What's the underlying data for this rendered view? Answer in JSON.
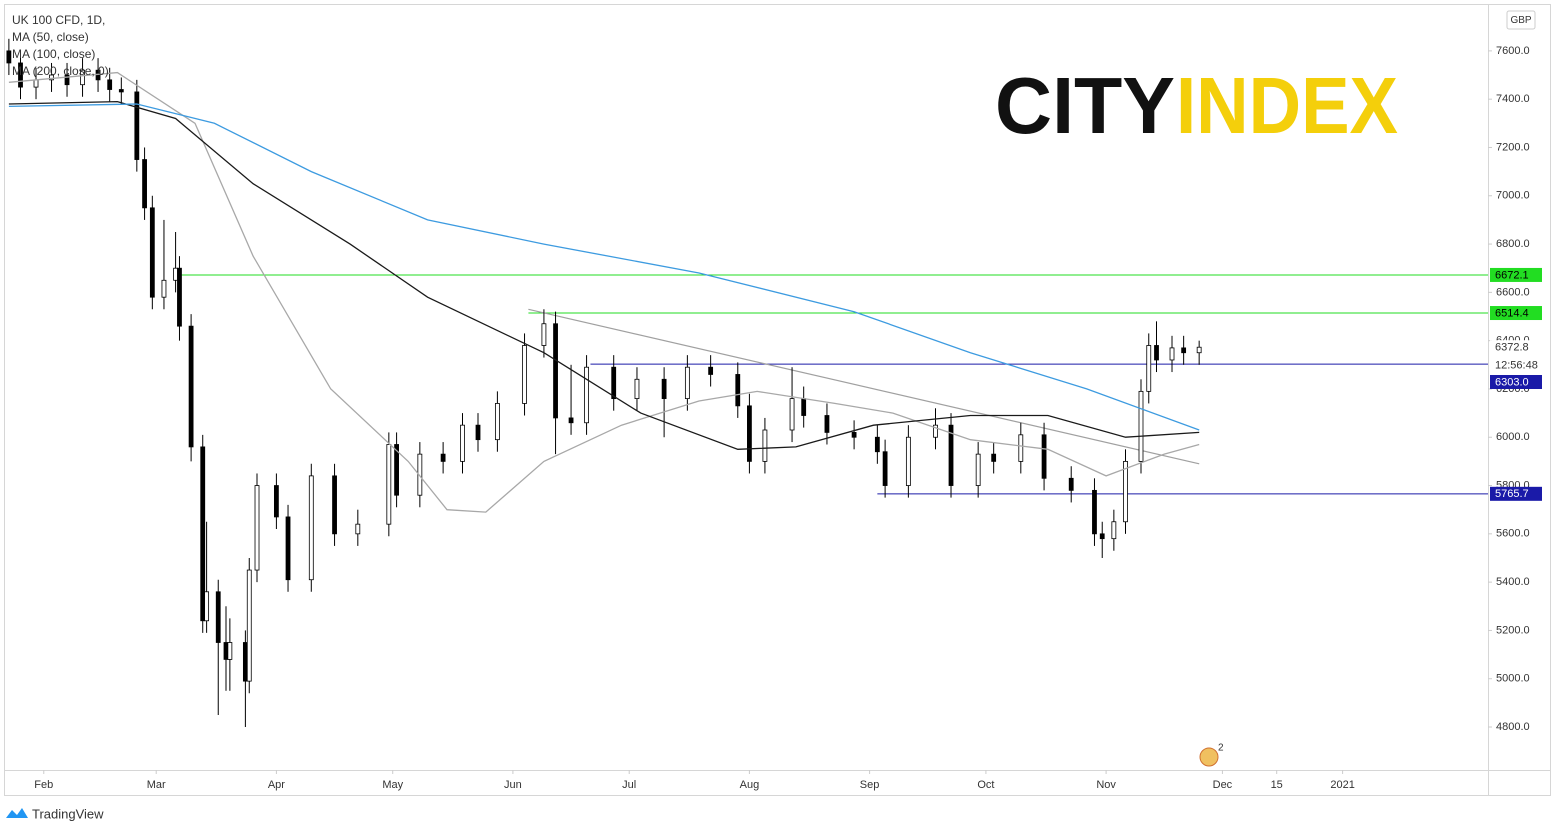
{
  "chart_data": {
    "type": "candlestick",
    "symbol": "UK 100 CFD, 1D,",
    "currency": "GBP",
    "brand": "TradingView",
    "logo": {
      "left": "CITY",
      "right": "INDEX"
    },
    "badge": "2",
    "countdown": "12:56:48",
    "xlim": [
      21,
      403.5
    ],
    "ylim": [
      4622,
      7790
    ],
    "grid": false,
    "xticks": [
      {
        "value": 31,
        "label": "Feb"
      },
      {
        "value": 60,
        "label": "Mar"
      },
      {
        "value": 91,
        "label": "Apr"
      },
      {
        "value": 121,
        "label": "May"
      },
      {
        "value": 152,
        "label": "Jun"
      },
      {
        "value": 182,
        "label": "Jul"
      },
      {
        "value": 213,
        "label": "Aug"
      },
      {
        "value": 244,
        "label": "Sep"
      },
      {
        "value": 274,
        "label": "Oct"
      },
      {
        "value": 305,
        "label": "Nov"
      },
      {
        "value": 335,
        "label": "Dec"
      },
      {
        "value": 349,
        "label": "15"
      },
      {
        "value": 366,
        "label": "2021"
      }
    ],
    "yticks": [
      {
        "value": 4800,
        "label": "4800.0"
      },
      {
        "value": 5000,
        "label": "5000.0"
      },
      {
        "value": 5200,
        "label": "5200.0"
      },
      {
        "value": 5400,
        "label": "5400.0"
      },
      {
        "value": 5600,
        "label": "5600.0"
      },
      {
        "value": 5800,
        "label": "5800.0"
      },
      {
        "value": 6000,
        "label": "6000.0"
      },
      {
        "value": 6200,
        "label": "6200.0"
      },
      {
        "value": 6400,
        "label": "6400.0"
      },
      {
        "value": 6600,
        "label": "6600.0"
      },
      {
        "value": 6800,
        "label": "6800.0"
      },
      {
        "value": 7000,
        "label": "7000.0"
      },
      {
        "value": 7200,
        "label": "7200.0"
      },
      {
        "value": 7400,
        "label": "7400.0"
      },
      {
        "value": 7600,
        "label": "7600.0"
      }
    ],
    "up_color": "#ffffff",
    "down_color": "#000000",
    "candles": {
      "x": [
        22,
        25,
        29,
        33,
        37,
        41,
        45,
        48,
        51,
        55,
        57,
        59,
        62,
        65,
        66,
        69,
        72,
        73,
        76,
        78,
        79,
        83,
        84,
        86,
        91,
        94,
        100,
        106,
        112,
        120,
        122,
        128,
        134,
        139,
        143,
        148,
        155,
        160,
        163,
        167,
        171,
        178,
        184,
        191,
        197,
        203,
        210,
        213,
        217,
        224,
        227,
        233,
        240,
        246,
        248,
        254,
        261,
        265,
        272,
        276,
        283,
        289,
        296,
        302,
        304,
        307,
        310,
        314,
        316,
        318,
        322,
        325,
        329
      ],
      "open": [
        7600,
        7550,
        7450,
        7480,
        7500,
        7460,
        7520,
        7480,
        7440,
        7430,
        7150,
        6950,
        6580,
        6650,
        6700,
        6460,
        5960,
        5240,
        5360,
        5150,
        5080,
        5150,
        4990,
        5450,
        5800,
        5670,
        5410,
        5840,
        5600,
        5640,
        5970,
        5760,
        5930,
        5900,
        6050,
        5990,
        6140,
        6380,
        6470,
        6080,
        6060,
        6290,
        6160,
        6240,
        6160,
        6290,
        6260,
        6130,
        5900,
        6030,
        6160,
        6090,
        6020,
        6000,
        5940,
        5800,
        6000,
        6050,
        5800,
        5930,
        5900,
        6010,
        5830,
        5780,
        5600,
        5580,
        5650,
        5900,
        6190,
        6380,
        6320,
        6370,
        6350
      ],
      "high": [
        7650,
        7600,
        7530,
        7550,
        7550,
        7570,
        7570,
        7530,
        7490,
        7480,
        7200,
        7000,
        6900,
        6850,
        6750,
        6510,
        6010,
        5650,
        5410,
        5300,
        5250,
        5200,
        5500,
        5850,
        5850,
        5720,
        5890,
        5890,
        5700,
        6020,
        6020,
        5980,
        5980,
        6100,
        6100,
        6190,
        6430,
        6530,
        6520,
        6300,
        6340,
        6340,
        6290,
        6290,
        6340,
        6340,
        6310,
        6180,
        6080,
        6290,
        6210,
        6140,
        6070,
        6050,
        5990,
        6050,
        6120,
        6100,
        5980,
        5980,
        6060,
        6060,
        5880,
        5830,
        5650,
        5700,
        5950,
        6240,
        6430,
        6480,
        6420,
        6420,
        6400
      ],
      "low": [
        7500,
        7400,
        7400,
        7430,
        7410,
        7410,
        7430,
        7390,
        7380,
        7100,
        6900,
        6530,
        6530,
        6600,
        6400,
        5900,
        5190,
        5190,
        4850,
        4950,
        4950,
        4800,
        4940,
        5400,
        5620,
        5360,
        5360,
        5550,
        5550,
        5590,
        5710,
        5710,
        5850,
        5850,
        5940,
        5940,
        6090,
        6330,
        5930,
        6010,
        6010,
        6110,
        6110,
        6000,
        6110,
        6210,
        6080,
        5850,
        5850,
        5980,
        6040,
        5970,
        5950,
        5890,
        5750,
        5750,
        5950,
        5750,
        5750,
        5850,
        5850,
        5780,
        5730,
        5550,
        5500,
        5530,
        5600,
        5850,
        6140,
        6270,
        6270,
        6300,
        6300
      ],
      "close": [
        7550,
        7450,
        7480,
        7500,
        7460,
        7520,
        7480,
        7440,
        7430,
        7150,
        6950,
        6580,
        6650,
        6700,
        6460,
        5960,
        5240,
        5360,
        5150,
        5080,
        5150,
        4990,
        5450,
        5800,
        5670,
        5410,
        5840,
        5600,
        5640,
        5970,
        5760,
        5930,
        5900,
        6050,
        5990,
        6140,
        6380,
        6470,
        6080,
        6060,
        6290,
        6160,
        6240,
        6160,
        6290,
        6260,
        6130,
        5900,
        6030,
        6160,
        6090,
        6020,
        6000,
        5940,
        5800,
        6000,
        6050,
        5800,
        5930,
        5900,
        6010,
        5830,
        5780,
        5600,
        5580,
        5650,
        5900,
        6190,
        6380,
        6320,
        6370,
        6350,
        6372.8
      ]
    },
    "series": [
      {
        "name": "MA (50, close)",
        "color": "#a8a8a8",
        "x": [
          22,
          50,
          70,
          85,
          105,
          125,
          135,
          145,
          160,
          180,
          200,
          215,
          235,
          250,
          270,
          290,
          305,
          320,
          329
        ],
        "values": [
          7470,
          7510,
          7300,
          6750,
          6200,
          5900,
          5700,
          5690,
          5900,
          6050,
          6150,
          6190,
          6140,
          6100,
          5990,
          5950,
          5840,
          5930,
          5970
        ]
      },
      {
        "name": "MA (100, close)",
        "color": "#1a1a1a",
        "x": [
          22,
          50,
          65,
          85,
          110,
          130,
          160,
          185,
          210,
          225,
          245,
          270,
          290,
          310,
          329
        ],
        "values": [
          7380,
          7390,
          7320,
          7050,
          6800,
          6580,
          6350,
          6100,
          5950,
          5960,
          6050,
          6090,
          6090,
          6000,
          6020
        ]
      },
      {
        "name": "MA (200, close, 0)",
        "color": "#3d9be0",
        "x": [
          22,
          55,
          75,
          100,
          130,
          160,
          200,
          240,
          270,
          300,
          329
        ],
        "values": [
          7370,
          7380,
          7300,
          7100,
          6900,
          6800,
          6680,
          6520,
          6350,
          6200,
          6030
        ]
      }
    ],
    "trendline": {
      "color": "#a0a0a0",
      "x": [
        156,
        329
      ],
      "values": [
        6530,
        5890
      ]
    },
    "levels": [
      {
        "value": 6672.1,
        "color": "#22dd22",
        "text_color": "#000000",
        "x_start": 65
      },
      {
        "value": 6514.4,
        "color": "#22dd22",
        "text_color": "#000000",
        "x_start": 156
      },
      {
        "value": 6303,
        "label": "6303.0",
        "color": "#1a1aa8",
        "text_color": "#ffffff",
        "x_start": 172
      },
      {
        "value": 5765.7,
        "color": "#1a1aa8",
        "text_color": "#ffffff",
        "x_start": 246
      }
    ]
  }
}
